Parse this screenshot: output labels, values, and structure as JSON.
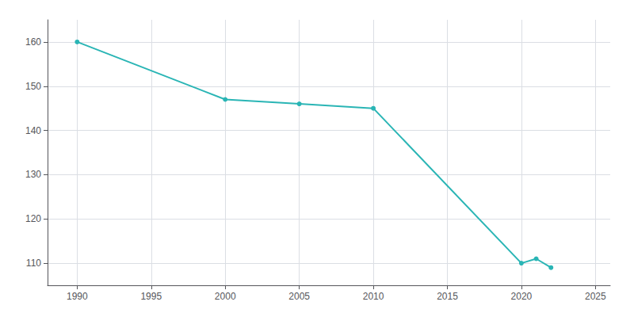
{
  "chart_data": {
    "type": "line",
    "x": [
      1990,
      2000,
      2005,
      2010,
      2020,
      2021,
      2022
    ],
    "values": [
      160,
      147,
      146,
      145,
      110,
      111,
      109
    ],
    "color": "#2ab5b5",
    "marker": "circle",
    "xlim": [
      1988,
      2026
    ],
    "ylim": [
      105,
      165
    ],
    "xticks": [
      1990,
      1995,
      2000,
      2005,
      2010,
      2015,
      2020,
      2025
    ],
    "yticks": [
      110,
      120,
      130,
      140,
      150,
      160
    ],
    "grid": true
  }
}
